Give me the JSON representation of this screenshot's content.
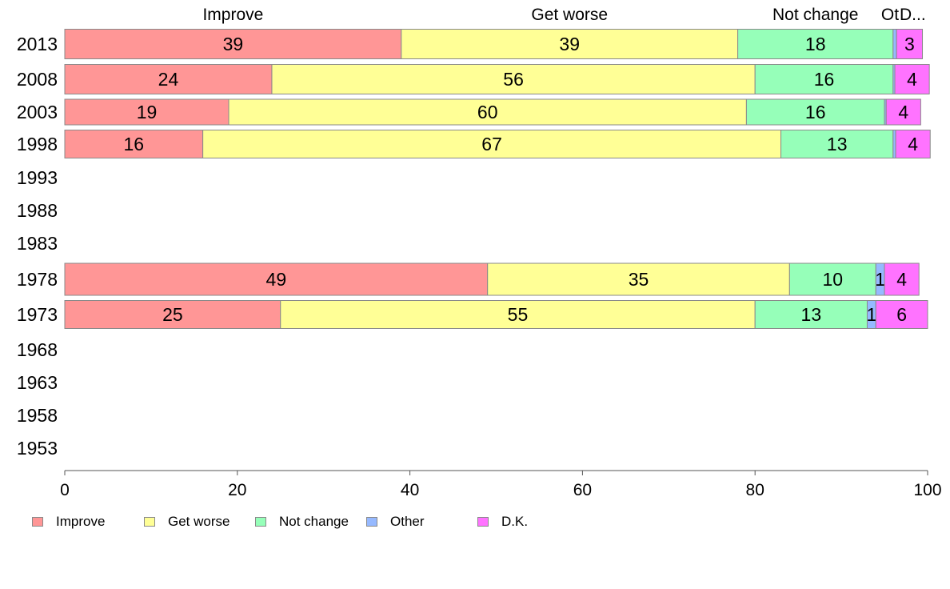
{
  "chart_data": {
    "type": "bar",
    "orientation": "horizontal",
    "stacked": true,
    "categories": [
      "2013",
      "2008",
      "2003",
      "1998",
      "1993",
      "1988",
      "1983",
      "1978",
      "1973",
      "1968",
      "1963",
      "1958",
      "1953"
    ],
    "series": [
      {
        "name": "Improve",
        "color": "#ff9696",
        "values": [
          39,
          24,
          19,
          16,
          null,
          null,
          null,
          49,
          25,
          null,
          null,
          null,
          null
        ]
      },
      {
        "name": "Get worse",
        "color": "#ffff96",
        "values": [
          39,
          56,
          60,
          67,
          null,
          null,
          null,
          35,
          55,
          null,
          null,
          null,
          null
        ]
      },
      {
        "name": "Not change",
        "color": "#96ffb9",
        "values": [
          18,
          16,
          16,
          13,
          null,
          null,
          null,
          10,
          13,
          null,
          null,
          null,
          null
        ]
      },
      {
        "name": "Other",
        "color": "#96b9ff",
        "values": [
          0.4,
          0.2,
          0.2,
          0.3,
          null,
          null,
          null,
          1,
          1,
          null,
          null,
          null,
          null
        ]
      },
      {
        "name": "D.K.",
        "color": "#ff73ff",
        "values": [
          3,
          4,
          4,
          4,
          null,
          null,
          null,
          4,
          6,
          null,
          null,
          null,
          null
        ]
      }
    ],
    "data_labels": [
      [
        "39",
        "39",
        "18",
        "",
        "3"
      ],
      [
        "24",
        "56",
        "16",
        "",
        "4"
      ],
      [
        "19",
        "60",
        "16",
        "",
        "4"
      ],
      [
        "16",
        "67",
        "13",
        "",
        "4"
      ],
      [
        "",
        "",
        "",
        "",
        ""
      ],
      [
        "",
        "",
        "",
        "",
        ""
      ],
      [
        "",
        "",
        "",
        "",
        ""
      ],
      [
        "49",
        "35",
        "10",
        "1",
        "4"
      ],
      [
        "25",
        "55",
        "13",
        "1",
        "6"
      ],
      [
        "",
        "",
        "",
        "",
        ""
      ],
      [
        "",
        "",
        "",
        "",
        ""
      ],
      [
        "",
        "",
        "",
        "",
        ""
      ],
      [
        "",
        "",
        "",
        "",
        ""
      ]
    ],
    "top_labels": [
      "Improve",
      "Get worse",
      "Not change",
      "Ot",
      "D..."
    ],
    "xlim": [
      0,
      100
    ],
    "xticks": [
      "0",
      "20",
      "40",
      "60",
      "80",
      "100"
    ],
    "grid": false,
    "legend_position": "bottom-left"
  }
}
